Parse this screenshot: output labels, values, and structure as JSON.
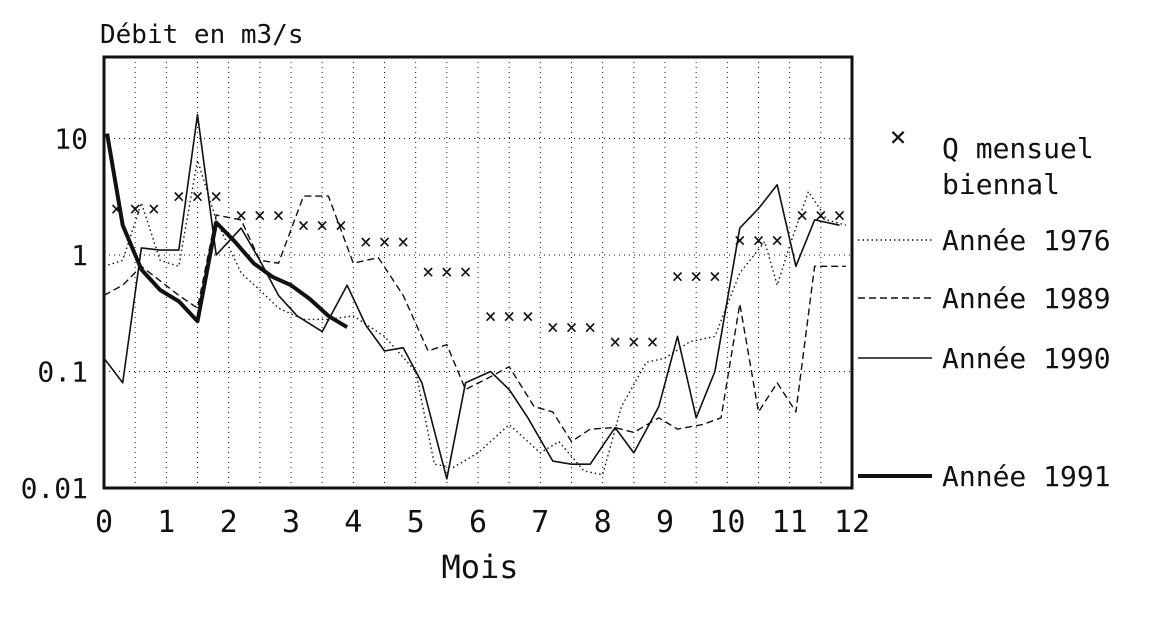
{
  "chart_data": {
    "type": "line",
    "title": "",
    "ylabel": "Débit en m3/s",
    "xlabel": "Mois",
    "xlim": [
      0,
      12
    ],
    "ylim": [
      0.01,
      50
    ],
    "yscale": "log",
    "grid": true,
    "legend_position": "right",
    "x_ticks": [
      "0",
      "1",
      "2",
      "3",
      "4",
      "5",
      "6",
      "7",
      "8",
      "9",
      "10",
      "11",
      "12"
    ],
    "y_ticks": [
      {
        "value": 10,
        "label": "10"
      },
      {
        "value": 1,
        "label": "1"
      },
      {
        "value": 0.1,
        "label": "0.1"
      },
      {
        "value": 0.01,
        "label": "0.01"
      }
    ],
    "legend": {
      "markers_label_line1": "Q mensuel",
      "markers_label_line2": "biennal"
    },
    "markers": {
      "name": "Q mensuel biennal",
      "symbol": "×",
      "x": [
        0.2,
        0.5,
        0.8,
        1.2,
        1.5,
        1.8,
        2.2,
        2.5,
        2.8,
        3.2,
        3.5,
        3.8,
        4.2,
        4.5,
        4.8,
        5.2,
        5.5,
        5.8,
        6.2,
        6.5,
        6.8,
        7.2,
        7.5,
        7.8,
        8.2,
        8.5,
        8.8,
        9.2,
        9.5,
        9.8,
        10.2,
        10.5,
        10.8,
        11.2,
        11.5,
        11.8
      ],
      "y": [
        2.5,
        2.5,
        2.5,
        3.2,
        3.2,
        3.2,
        2.2,
        2.2,
        2.2,
        1.8,
        1.8,
        1.8,
        1.3,
        1.3,
        1.3,
        0.72,
        0.72,
        0.72,
        0.3,
        0.3,
        0.3,
        0.24,
        0.24,
        0.24,
        0.18,
        0.18,
        0.18,
        0.66,
        0.66,
        0.66,
        1.35,
        1.35,
        1.35,
        2.2,
        2.2,
        2.2
      ]
    },
    "series": [
      {
        "name": "Année 1976",
        "style": "dotted",
        "x": [
          0,
          0.3,
          0.6,
          0.9,
          1.2,
          1.5,
          1.8,
          2.2,
          2.5,
          2.8,
          3.2,
          3.6,
          4.0,
          4.5,
          5.0,
          5.3,
          5.6,
          6.0,
          6.5,
          7.0,
          7.3,
          7.7,
          8.0,
          8.3,
          8.7,
          9.0,
          9.4,
          9.8,
          10.2,
          10.6,
          10.8,
          11.0,
          11.3,
          11.6,
          11.9
        ],
        "y": [
          0.8,
          0.9,
          2.8,
          0.9,
          0.8,
          6.5,
          2.0,
          0.7,
          0.5,
          0.35,
          0.28,
          0.28,
          0.3,
          0.2,
          0.1,
          0.016,
          0.015,
          0.02,
          0.035,
          0.02,
          0.025,
          0.014,
          0.013,
          0.05,
          0.12,
          0.13,
          0.18,
          0.2,
          0.7,
          1.3,
          0.55,
          1.2,
          3.5,
          2.0,
          1.8
        ]
      },
      {
        "name": "Année 1989",
        "style": "dashed",
        "x": [
          0,
          0.3,
          0.6,
          0.9,
          1.2,
          1.5,
          1.8,
          2.2,
          2.5,
          2.8,
          3.2,
          3.6,
          4.0,
          4.4,
          4.8,
          5.2,
          5.5,
          5.8,
          6.2,
          6.5,
          6.9,
          7.2,
          7.5,
          7.8,
          8.2,
          8.5,
          8.9,
          9.2,
          9.6,
          9.9,
          10.2,
          10.5,
          10.8,
          11.1,
          11.4,
          11.7,
          11.9
        ],
        "y": [
          0.45,
          0.55,
          0.8,
          0.6,
          0.45,
          0.35,
          2.2,
          2.0,
          0.9,
          0.85,
          3.2,
          3.2,
          0.85,
          0.95,
          0.45,
          0.15,
          0.17,
          0.07,
          0.09,
          0.11,
          0.05,
          0.045,
          0.025,
          0.032,
          0.033,
          0.03,
          0.04,
          0.032,
          0.035,
          0.04,
          0.38,
          0.045,
          0.08,
          0.045,
          0.8,
          0.8,
          0.8
        ]
      },
      {
        "name": "Année 1990",
        "style": "solid",
        "x": [
          0,
          0.3,
          0.6,
          0.9,
          1.2,
          1.5,
          1.8,
          2.2,
          2.5,
          2.8,
          3.1,
          3.5,
          3.9,
          4.2,
          4.5,
          4.8,
          5.1,
          5.5,
          5.8,
          6.2,
          6.5,
          6.8,
          7.2,
          7.5,
          7.8,
          8.2,
          8.5,
          8.9,
          9.2,
          9.5,
          9.8,
          10.2,
          10.5,
          10.8,
          11.1,
          11.4,
          11.8
        ],
        "y": [
          0.13,
          0.08,
          1.15,
          1.1,
          1.1,
          16.0,
          1.0,
          1.7,
          0.9,
          0.45,
          0.3,
          0.22,
          0.55,
          0.25,
          0.15,
          0.16,
          0.08,
          0.012,
          0.08,
          0.1,
          0.07,
          0.04,
          0.017,
          0.016,
          0.016,
          0.033,
          0.02,
          0.05,
          0.2,
          0.04,
          0.1,
          1.7,
          2.5,
          4.0,
          0.8,
          2.0,
          1.8
        ]
      },
      {
        "name": "Année 1991",
        "style": "bold",
        "x": [
          0.05,
          0.3,
          0.6,
          0.9,
          1.2,
          1.5,
          1.8,
          2.1,
          2.4,
          2.7,
          3.0,
          3.3,
          3.6,
          3.9
        ],
        "y": [
          11.0,
          1.8,
          0.75,
          0.5,
          0.4,
          0.27,
          1.9,
          1.3,
          0.85,
          0.65,
          0.55,
          0.42,
          0.3,
          0.24
        ]
      }
    ]
  }
}
